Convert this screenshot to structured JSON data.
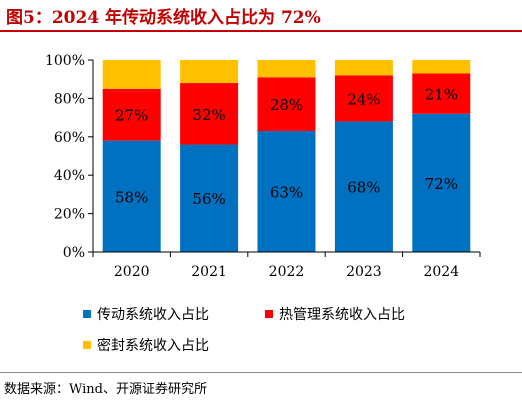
{
  "title": "图5：2024 年传动系统收入占比为 72%",
  "source": "数据来源：Wind、开源证券研究所",
  "chart_data": {
    "type": "bar",
    "stacked": true,
    "categories": [
      "2020",
      "2021",
      "2022",
      "2023",
      "2024"
    ],
    "series": [
      {
        "name": "传动系统收入占比",
        "color": "#0070c0",
        "values": [
          58,
          56,
          63,
          68,
          72
        ],
        "labels": [
          "58%",
          "56%",
          "63%",
          "68%",
          "72%"
        ]
      },
      {
        "name": "热管理系统收入占比",
        "color": "#ff0000",
        "values": [
          27,
          32,
          28,
          24,
          21
        ],
        "labels": [
          "27%",
          "32%",
          "28%",
          "24%",
          "21%"
        ]
      },
      {
        "name": "密封系统收入占比",
        "color": "#ffc000",
        "values": [
          15,
          12,
          9,
          8,
          7
        ],
        "labels": []
      }
    ],
    "ylim": [
      0,
      100
    ],
    "yticks": [
      "0%",
      "20%",
      "40%",
      "60%",
      "80%",
      "100%"
    ],
    "grid": false,
    "legend_position": "bottom-left"
  }
}
